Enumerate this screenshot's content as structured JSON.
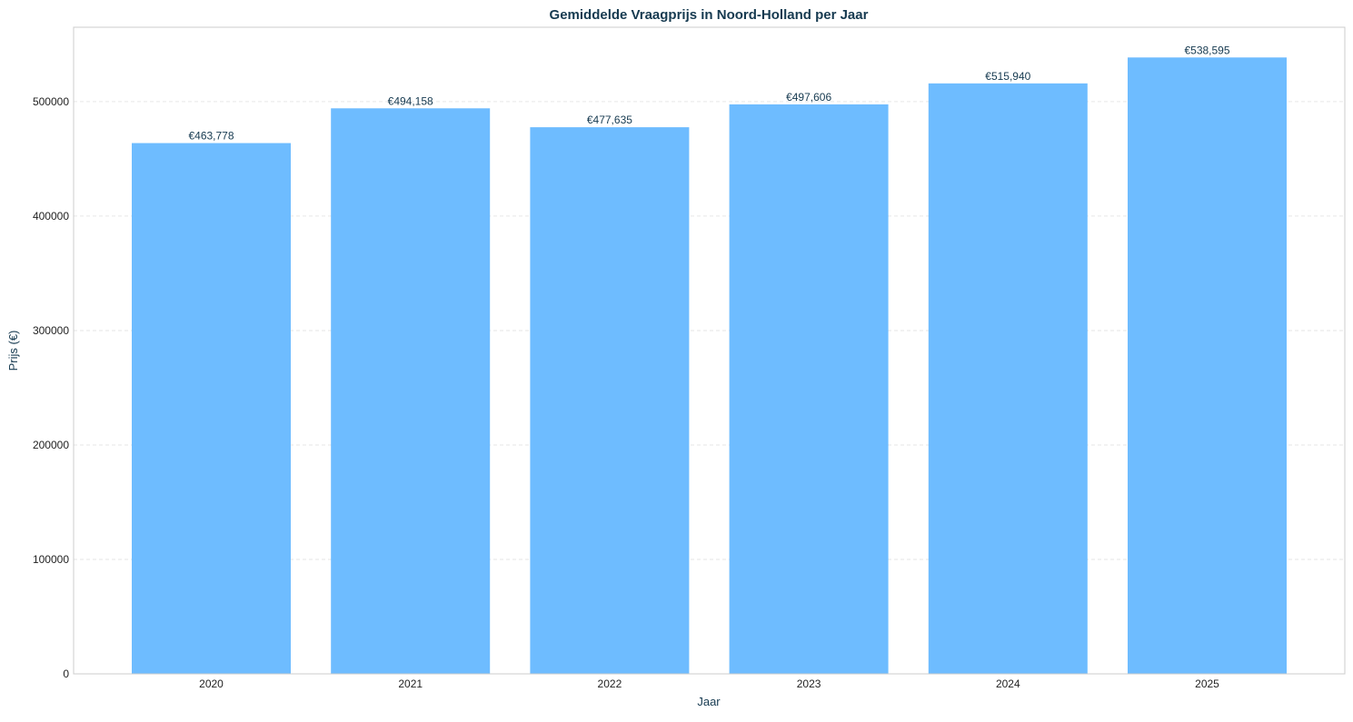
{
  "chart_data": {
    "type": "bar",
    "title": "Gemiddelde Vraagprijs in Noord-Holland per Jaar",
    "xlabel": "Jaar",
    "ylabel": "Prijs (€)",
    "categories": [
      "2020",
      "2021",
      "2022",
      "2023",
      "2024",
      "2025"
    ],
    "values": [
      463778,
      494158,
      477635,
      497606,
      515940,
      538595
    ],
    "data_labels": [
      "€463,778",
      "€494,158",
      "€477,635",
      "€497,606",
      "€515,940",
      "€538,595"
    ],
    "ylim": [
      0,
      565000
    ],
    "yticks": [
      0,
      100000,
      200000,
      300000,
      400000,
      500000
    ],
    "ytick_labels": [
      "0",
      "100000",
      "200000",
      "300000",
      "400000",
      "500000"
    ],
    "grid": true,
    "grid_axis": "y",
    "legend": "none",
    "colors": {
      "bar": "#6ebcff",
      "title": "#163a50",
      "axis_label": "#163a50",
      "tick_label": "#222222",
      "data_label": "#163a50",
      "frame": "#cccccc",
      "grid": "#e6e6e6"
    }
  }
}
